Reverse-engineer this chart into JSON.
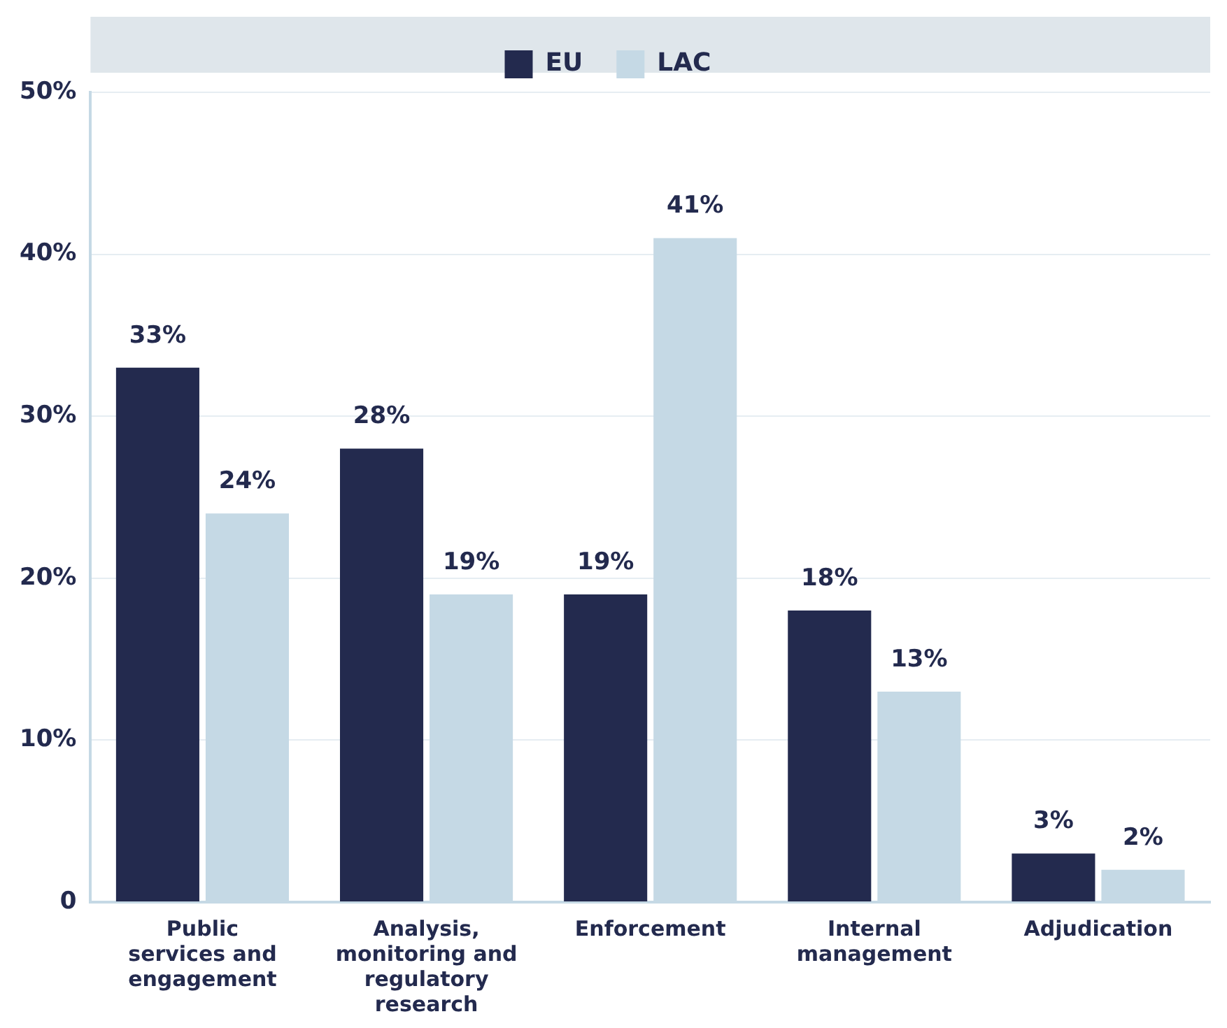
{
  "chart_data": {
    "type": "bar",
    "categories": [
      "Public services and engagement",
      "Analysis, monitoring and regulatory research",
      "Enforcement",
      "Internal management",
      "Adjudication"
    ],
    "series": [
      {
        "name": "EU",
        "color": "#232a4e",
        "values": [
          33,
          28,
          19,
          18,
          3
        ],
        "value_labels": [
          "33%",
          "28%",
          "19%",
          "18%",
          "3%"
        ]
      },
      {
        "name": "LAC",
        "color": "#c5d9e5",
        "values": [
          24,
          19,
          41,
          13,
          2
        ],
        "value_labels": [
          "24%",
          "19%",
          "41%",
          "13%",
          "2%"
        ]
      }
    ],
    "ylim": [
      0,
      50
    ],
    "yticks": [
      0,
      {
        "value": 10,
        "label": "10%"
      },
      {
        "value": 20,
        "label": "20%"
      },
      {
        "value": 30,
        "label": "30%"
      },
      {
        "value": 40,
        "label": "40%"
      },
      {
        "value": 50,
        "label": "50%"
      }
    ],
    "grid": "y",
    "legend": "top"
  }
}
